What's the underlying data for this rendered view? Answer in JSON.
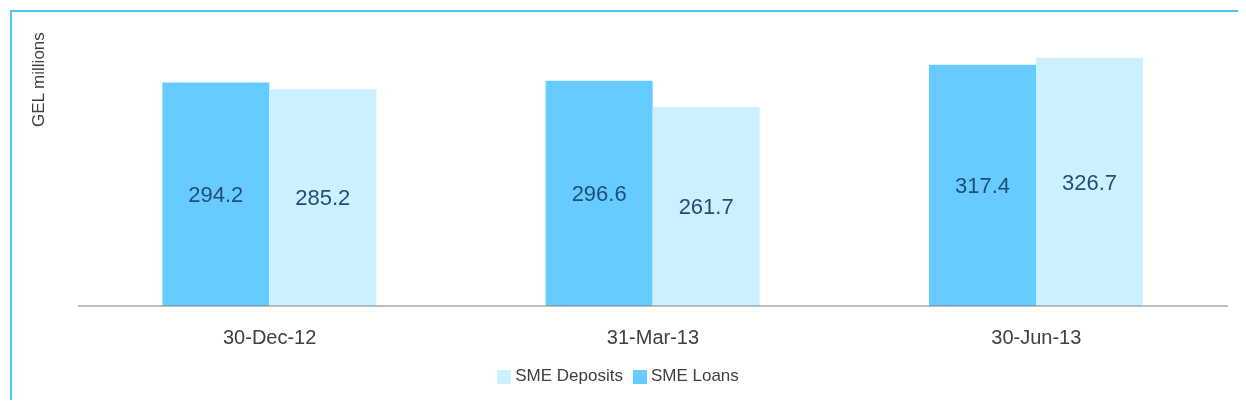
{
  "chart_data": {
    "type": "bar",
    "ylabel": "GEL millions",
    "categories": [
      "30-Dec-12",
      "31-Mar-13",
      "30-Jun-13"
    ],
    "series": [
      {
        "name": "SME Loans",
        "color": "#66ccff",
        "values": [
          294.2,
          296.6,
          317.4
        ]
      },
      {
        "name": "SME Deposits",
        "color": "#ccf0ff",
        "values": [
          285.2,
          261.7,
          326.7
        ]
      }
    ],
    "data_labels": true,
    "legend": "bottom",
    "grid": false
  }
}
